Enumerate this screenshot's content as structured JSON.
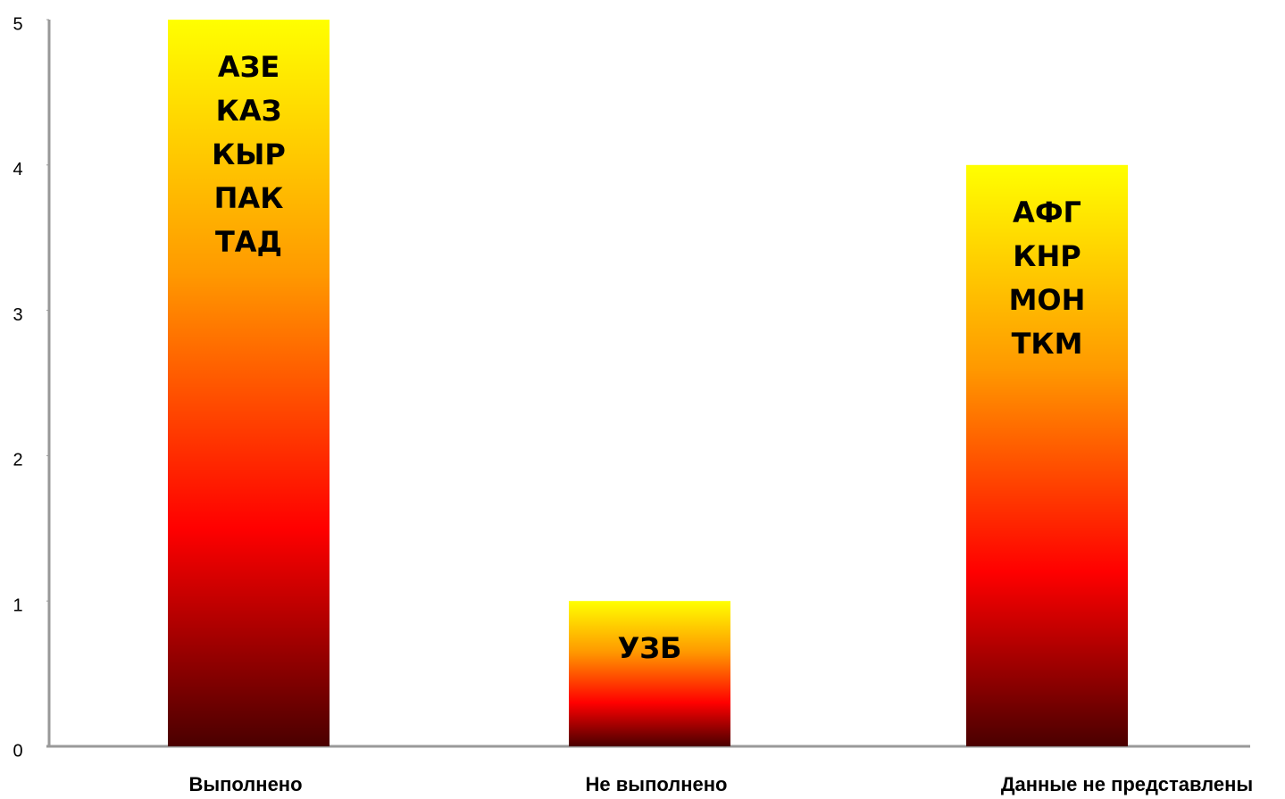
{
  "chart_data": {
    "type": "bar",
    "categories": [
      "Выполнено",
      "Не выполнено",
      "Данные не представлены"
    ],
    "values": [
      5,
      1,
      4
    ],
    "bar_labels": [
      [
        "АЗЕ",
        "КАЗ",
        "КЫР",
        "ПАК",
        "ТАД"
      ],
      [
        "УЗБ"
      ],
      [
        "АФГ",
        "КНР",
        "МОН",
        "ТКМ"
      ]
    ],
    "ylim": [
      0,
      5
    ],
    "yticks": [
      0,
      1,
      2,
      3,
      4,
      5
    ],
    "grid": false
  }
}
